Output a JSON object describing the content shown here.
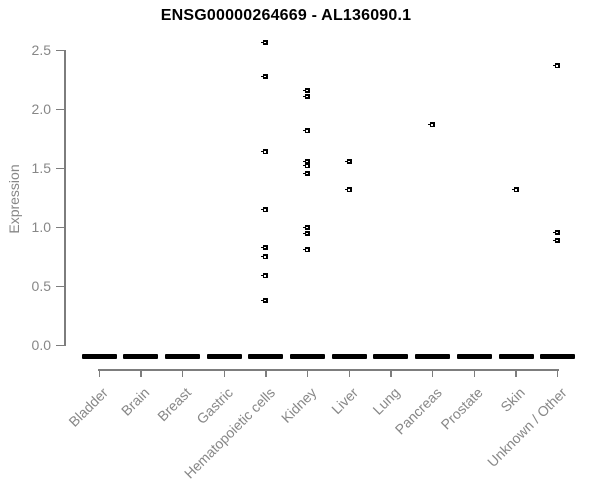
{
  "chart_data": {
    "type": "scatter",
    "title": "ENSG00000264669 - AL136090.1",
    "ylabel": "Expression",
    "xlabel": "",
    "ylim": [
      0.0,
      2.5
    ],
    "yticks": [
      "0.0",
      "0.5",
      "1.0",
      "1.5",
      "2.0",
      "2.5"
    ],
    "grid": false,
    "legend": false,
    "marker": "small-black-open-square",
    "zero_line": {
      "value": 0.0,
      "style": "thick-black-dash-per-category"
    },
    "categories": [
      "Bladder",
      "Brain",
      "Breast",
      "Gastric",
      "Hematopoietic cells",
      "Kidney",
      "Liver",
      "Lung",
      "Pancreas",
      "Prostate",
      "Skin",
      "Unknown / Other"
    ],
    "series": [
      {
        "category": "Bladder",
        "points": [],
        "zero_dash": true
      },
      {
        "category": "Brain",
        "points": [],
        "zero_dash": true
      },
      {
        "category": "Breast",
        "points": [],
        "zero_dash": true
      },
      {
        "category": "Gastric",
        "points": [],
        "zero_dash": true
      },
      {
        "category": "Hematopoietic cells",
        "points": [
          2.57,
          2.28,
          1.64,
          1.15,
          0.83,
          0.75,
          0.59,
          0.38
        ],
        "zero_dash": true
      },
      {
        "category": "Kidney",
        "points": [
          2.16,
          2.11,
          1.82,
          1.56,
          1.52,
          1.46,
          1.0,
          0.95,
          0.81
        ],
        "zero_dash": true
      },
      {
        "category": "Liver",
        "points": [
          1.56,
          1.32
        ],
        "zero_dash": true
      },
      {
        "category": "Lung",
        "points": [],
        "zero_dash": true
      },
      {
        "category": "Pancreas",
        "points": [
          1.87
        ],
        "zero_dash": true
      },
      {
        "category": "Prostate",
        "points": [],
        "zero_dash": true
      },
      {
        "category": "Skin",
        "points": [
          1.32
        ],
        "zero_dash": true
      },
      {
        "category": "Unknown / Other",
        "points": [
          2.37,
          0.96,
          0.89
        ],
        "zero_dash": true
      }
    ],
    "colors": {
      "point": "#000000",
      "title": "#000000",
      "axis": "#7d7d7d",
      "labels": "#878787",
      "background": "#ffffff"
    }
  }
}
